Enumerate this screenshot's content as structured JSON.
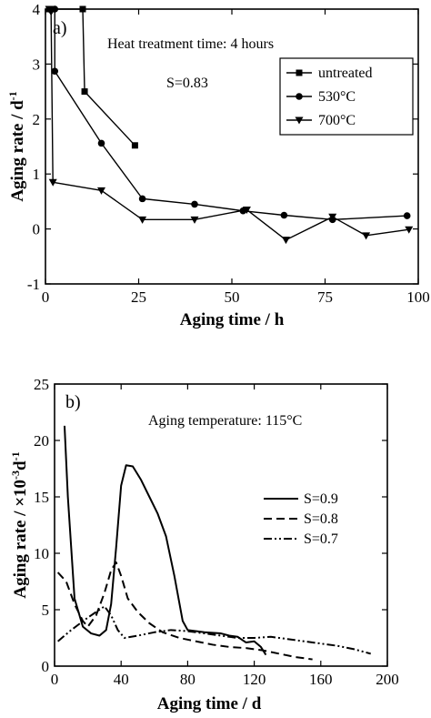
{
  "chart_data": [
    {
      "type": "line",
      "panel_label": "a)",
      "xlabel": "Aging time / h",
      "ylabel": "Aging rate / d",
      "ylabel_sup": "-1",
      "xlim": [
        0,
        100
      ],
      "ylim": [
        -1,
        4
      ],
      "xticks": [
        0,
        25,
        50,
        75,
        100
      ],
      "yticks": [
        -1,
        0,
        1,
        2,
        3,
        4
      ],
      "annotations": [
        "Heat treatment time:  4 hours",
        "S=0.83"
      ],
      "legend_position": "top-right",
      "series": [
        {
          "name": "untreated",
          "marker": "square",
          "x": [
            1,
            10,
            10.5,
            24
          ],
          "y": [
            4,
            4,
            2.5,
            1.52
          ]
        },
        {
          "name": "530°C",
          "marker": "circle",
          "x": [
            2.5,
            2.5,
            15,
            26,
            40,
            53,
            64,
            77,
            97
          ],
          "y": [
            4,
            2.87,
            1.56,
            0.55,
            0.45,
            0.33,
            0.25,
            0.17,
            0.24
          ]
        },
        {
          "name": "700°C",
          "marker": "triangle-down",
          "x": [
            1,
            1.5,
            2,
            15,
            26,
            40,
            54,
            64.5,
            77,
            86,
            97.5
          ],
          "y": [
            4,
            3.95,
            0.85,
            0.7,
            0.17,
            0.17,
            0.35,
            -0.2,
            0.22,
            -0.12,
            -0.01
          ]
        }
      ]
    },
    {
      "type": "line",
      "panel_label": "b)",
      "xlabel": "Aging time / d",
      "ylabel": "Aging rate / ×10",
      "ylabel_sup": "-3",
      "ylabel_tail": "d",
      "ylabel_tail_sup": "-1",
      "xlim": [
        0,
        200
      ],
      "ylim": [
        0,
        25
      ],
      "xticks": [
        0,
        40,
        80,
        120,
        160,
        200
      ],
      "yticks": [
        0,
        5,
        10,
        15,
        20,
        25
      ],
      "annotations": [
        "Aging temperature: 115°C"
      ],
      "legend_position": "middle-right",
      "series": [
        {
          "name": "S=0.9",
          "style": "solid",
          "x": [
            6,
            8,
            12,
            17,
            22,
            27,
            31,
            34,
            37,
            40,
            43,
            47,
            52,
            57,
            62,
            67,
            72,
            77,
            80,
            90,
            100,
            105,
            110,
            115,
            120,
            124,
            127
          ],
          "y": [
            21.3,
            15,
            6,
            3.5,
            2.9,
            2.7,
            3.2,
            5.5,
            10.5,
            16,
            17.8,
            17.7,
            16.5,
            15,
            13.5,
            11.5,
            8,
            4,
            3.2,
            3,
            2.9,
            2.7,
            2.6,
            2.1,
            2.2,
            1.7,
            1
          ]
        },
        {
          "name": "S=0.8",
          "style": "dashed",
          "x": [
            2,
            7,
            12,
            17,
            20,
            25,
            30,
            34,
            37,
            40,
            44,
            50,
            57,
            65,
            75,
            85,
            95,
            105,
            115,
            125,
            135,
            145,
            155
          ],
          "y": [
            8.3,
            7.5,
            5.5,
            4,
            3.5,
            4.5,
            6.5,
            8.5,
            9.2,
            8,
            6,
            4.8,
            3.8,
            3,
            2.5,
            2.2,
            1.9,
            1.7,
            1.6,
            1.4,
            1.1,
            0.8,
            0.6
          ]
        },
        {
          "name": "S=0.7",
          "style": "dash-dot-dot",
          "x": [
            2,
            10,
            20,
            27,
            30,
            34,
            38,
            42,
            50,
            60,
            70,
            80,
            90,
            100,
            110,
            120,
            130,
            140,
            150,
            160,
            170,
            180,
            190
          ],
          "y": [
            2.2,
            3.2,
            4.3,
            5,
            5.3,
            4.5,
            3.2,
            2.5,
            2.7,
            3,
            3.2,
            3.1,
            2.9,
            2.7,
            2.5,
            2.5,
            2.6,
            2.4,
            2.2,
            2,
            1.8,
            1.5,
            1.1
          ]
        }
      ]
    }
  ]
}
